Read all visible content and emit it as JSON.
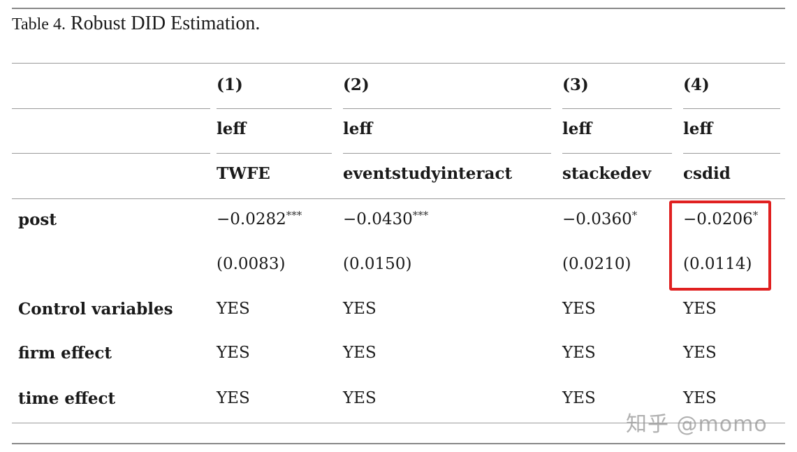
{
  "caption": {
    "label": "Table 4.",
    "title": "Robust DID Estimation."
  },
  "columns": [
    {
      "num": "(1)",
      "dep": "leff",
      "method": "TWFE"
    },
    {
      "num": "(2)",
      "dep": "leff",
      "method": "eventstudyinteract"
    },
    {
      "num": "(3)",
      "dep": "leff",
      "method": "stackedev"
    },
    {
      "num": "(4)",
      "dep": "leff",
      "method": "csdid"
    }
  ],
  "rows": {
    "post": {
      "label": "post",
      "coef": [
        "−0.0282",
        "−0.0430",
        "−0.0360",
        "−0.0206"
      ],
      "stars": [
        "***",
        "***",
        "*",
        "*"
      ],
      "se": [
        "(0.0083)",
        "(0.0150)",
        "(0.0210)",
        "(0.0114)"
      ]
    },
    "controls": {
      "label": "Control variables",
      "values": [
        "YES",
        "YES",
        "YES",
        "YES"
      ]
    },
    "firm": {
      "label": "firm effect",
      "values": [
        "YES",
        "YES",
        "YES",
        "YES"
      ]
    },
    "time": {
      "label": "time effect",
      "values": [
        "YES",
        "YES",
        "YES",
        "YES"
      ]
    }
  },
  "highlight_color": "#e02020",
  "watermark": "知乎 @momo"
}
